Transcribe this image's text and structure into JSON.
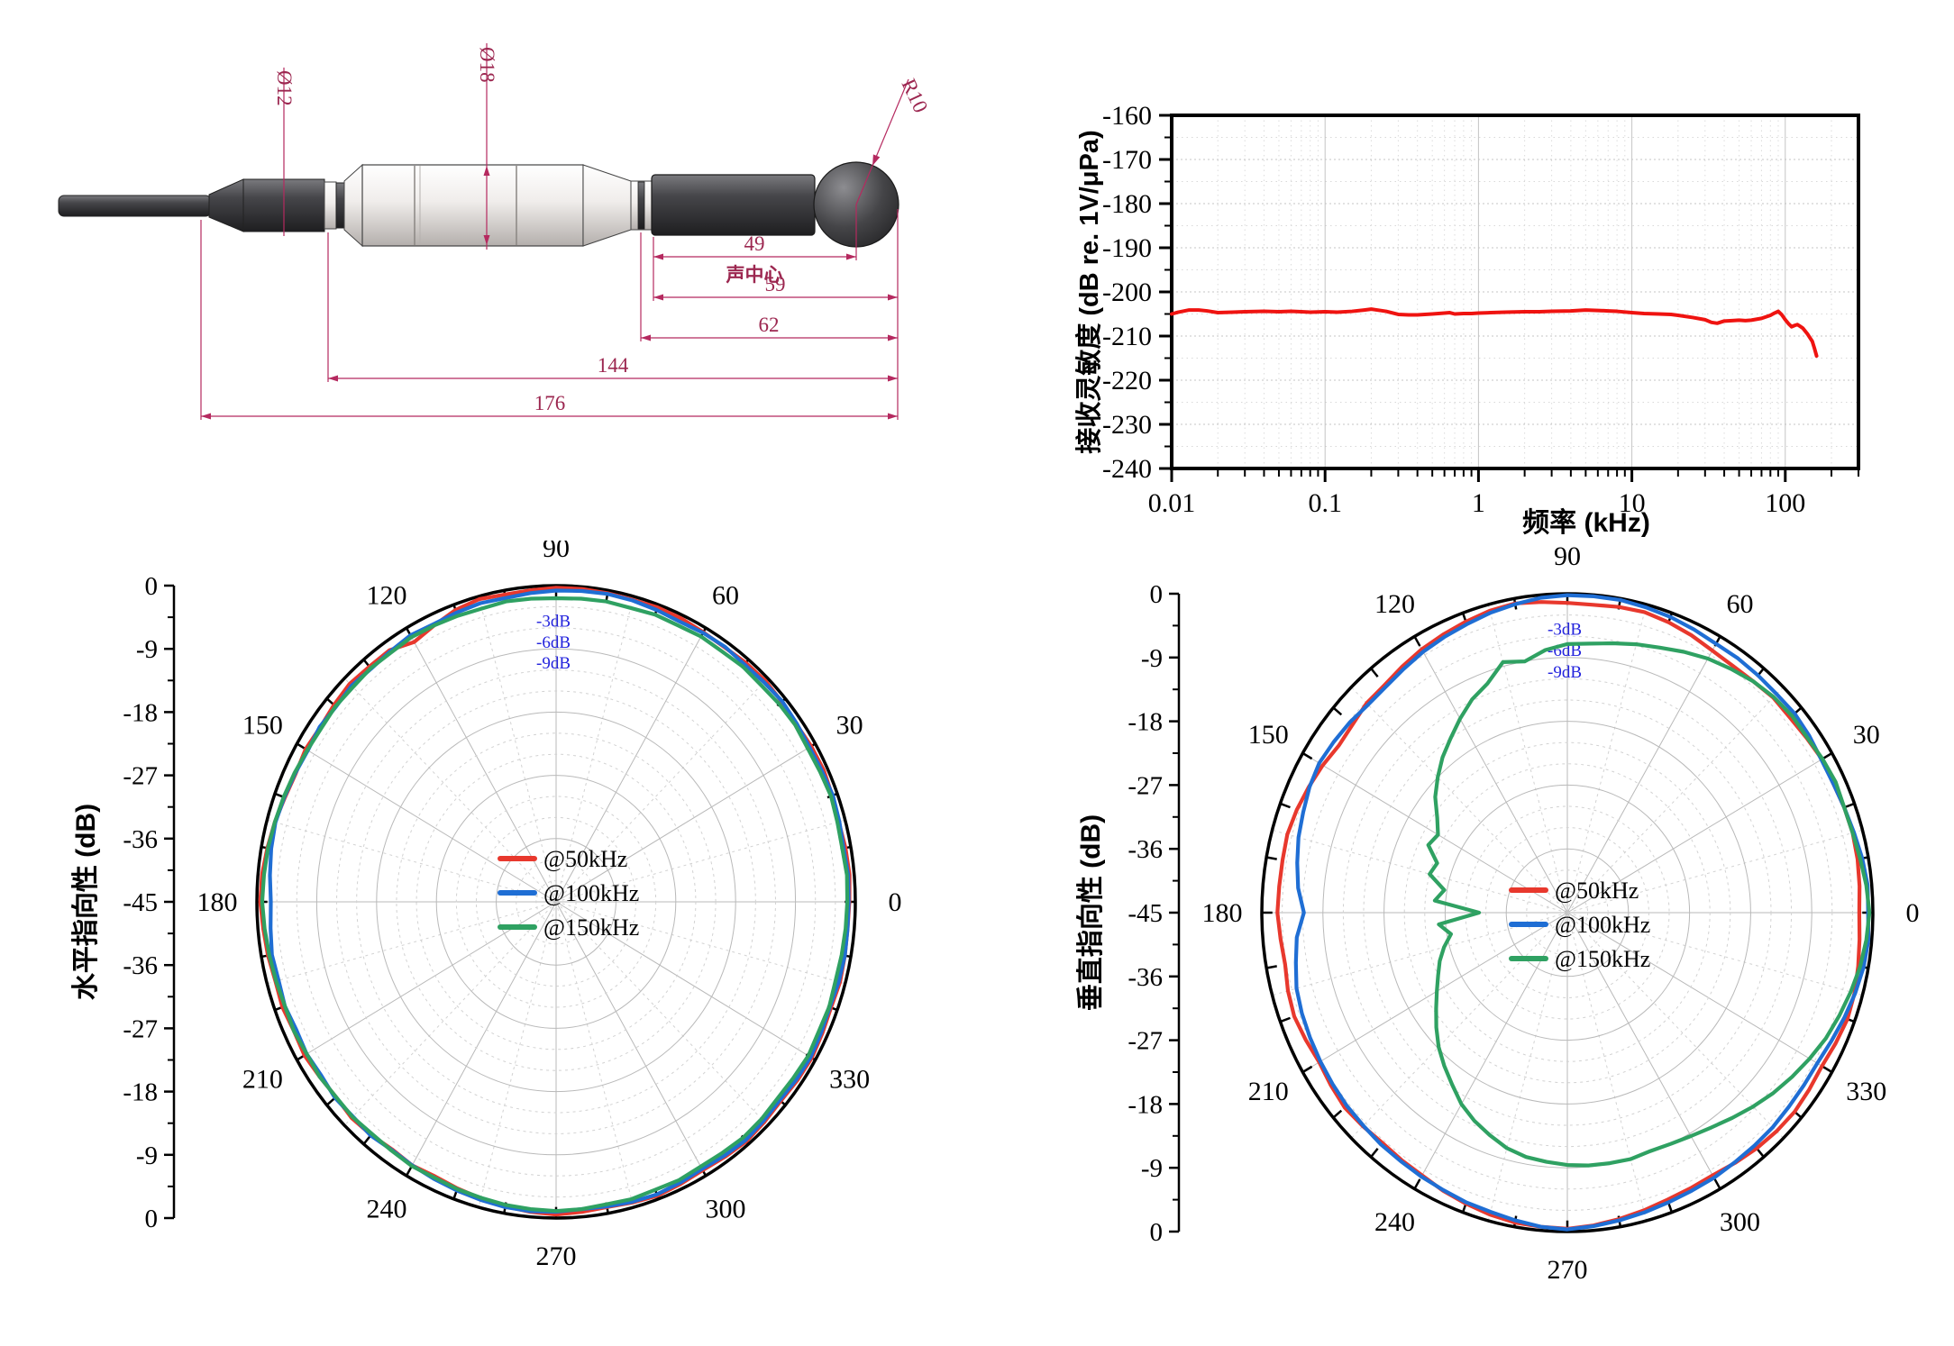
{
  "drawing": {
    "dim_color": "#b5295f",
    "labels": {
      "dia_connector": "Ø12",
      "dia_body": "Ø18",
      "radius_sphere": "R10",
      "dim_49": "49",
      "acoustic_center": "声中心",
      "dim_59": "59",
      "dim_62": "62",
      "dim_144": "144",
      "dim_176": "176"
    }
  },
  "chart_data": [
    {
      "type": "line",
      "name": "receive-sensitivity-frequency-response",
      "xlabel": "频率 (kHz)",
      "ylabel": "接收灵敏度 (dB re. 1V/μPa)",
      "xscale": "log",
      "xlim": [
        0.01,
        300
      ],
      "ylim": [
        -240,
        -160
      ],
      "x_tick_labels": [
        "0.01",
        "0.1",
        "1",
        "10",
        "100"
      ],
      "x_ticks": [
        0.01,
        0.1,
        1,
        10,
        100
      ],
      "y_ticks": [
        -160,
        -170,
        -180,
        -190,
        -200,
        -210,
        -220,
        -230,
        -240
      ],
      "y_tick_labels": [
        "-160",
        "-170",
        "-180",
        "-190",
        "-200",
        "-210",
        "-220",
        "-230",
        "-240"
      ],
      "grid": true,
      "line_color": "#ef1310",
      "points": [
        [
          0.01,
          -205.0
        ],
        [
          0.011,
          -204.6
        ],
        [
          0.013,
          -204.1
        ],
        [
          0.015,
          -204.1
        ],
        [
          0.017,
          -204.3
        ],
        [
          0.02,
          -204.7
        ],
        [
          0.025,
          -204.6
        ],
        [
          0.03,
          -204.5
        ],
        [
          0.04,
          -204.4
        ],
        [
          0.05,
          -204.5
        ],
        [
          0.06,
          -204.4
        ],
        [
          0.07,
          -204.5
        ],
        [
          0.08,
          -204.6
        ],
        [
          0.1,
          -204.5
        ],
        [
          0.12,
          -204.6
        ],
        [
          0.15,
          -204.4
        ],
        [
          0.18,
          -204.1
        ],
        [
          0.2,
          -203.9
        ],
        [
          0.25,
          -204.4
        ],
        [
          0.3,
          -205.1
        ],
        [
          0.35,
          -205.2
        ],
        [
          0.4,
          -205.2
        ],
        [
          0.5,
          -205.0
        ],
        [
          0.6,
          -204.8
        ],
        [
          0.65,
          -204.7
        ],
        [
          0.7,
          -205.0
        ],
        [
          0.8,
          -204.9
        ],
        [
          0.9,
          -204.9
        ],
        [
          1,
          -204.8
        ],
        [
          1.2,
          -204.7
        ],
        [
          1.5,
          -204.6
        ],
        [
          2,
          -204.5
        ],
        [
          2.5,
          -204.5
        ],
        [
          3,
          -204.4
        ],
        [
          4,
          -204.3
        ],
        [
          5,
          -204.1
        ],
        [
          6,
          -204.2
        ],
        [
          7,
          -204.3
        ],
        [
          8,
          -204.4
        ],
        [
          10,
          -204.7
        ],
        [
          12,
          -204.9
        ],
        [
          15,
          -205.0
        ],
        [
          18,
          -205.1
        ],
        [
          20,
          -205.3
        ],
        [
          25,
          -205.8
        ],
        [
          30,
          -206.3
        ],
        [
          33,
          -206.9
        ],
        [
          36,
          -207.1
        ],
        [
          40,
          -206.6
        ],
        [
          45,
          -206.5
        ],
        [
          50,
          -206.4
        ],
        [
          55,
          -206.5
        ],
        [
          60,
          -206.4
        ],
        [
          70,
          -206.0
        ],
        [
          80,
          -205.3
        ],
        [
          85,
          -204.8
        ],
        [
          90,
          -204.4
        ],
        [
          95,
          -205.2
        ],
        [
          100,
          -206.3
        ],
        [
          105,
          -207.2
        ],
        [
          110,
          -207.9
        ],
        [
          115,
          -207.6
        ],
        [
          120,
          -207.4
        ],
        [
          125,
          -207.8
        ],
        [
          130,
          -208.2
        ],
        [
          140,
          -209.6
        ],
        [
          150,
          -211.2
        ],
        [
          155,
          -212.8
        ],
        [
          160,
          -214.5
        ]
      ]
    },
    {
      "type": "polar-line",
      "name": "horizontal-directivity",
      "axis_title": "水平指向性 (dB)",
      "r_range": [
        0,
        -45
      ],
      "r_axis_labels": [
        "0",
        "-9",
        "-18",
        "-27",
        "-36",
        "-45",
        "-36",
        "-27",
        "-18",
        "-9",
        "0"
      ],
      "angle_labels": [
        "0",
        "30",
        "60",
        "90",
        "120",
        "150",
        "180",
        "210",
        "240",
        "270",
        "300",
        "330"
      ],
      "annotations": [
        "-3dB",
        "-6dB",
        "-9dB"
      ],
      "annotation_dbs": [
        -3,
        -6,
        -9
      ],
      "annotation_color": "#2323dd",
      "angle_step_deg": 5,
      "series": [
        {
          "name": "@50kHz",
          "color": "#e8382d",
          "values": [
            -0.9,
            -0.7,
            -0.8,
            -1.0,
            -0.8,
            -0.6,
            -0.7,
            -0.9,
            -0.7,
            -0.5,
            -0.6,
            -0.8,
            -0.7,
            -0.5,
            -0.4,
            -0.5,
            -0.4,
            -0.3,
            -0.3,
            -0.5,
            -0.6,
            -0.4,
            -0.8,
            -1.6,
            -2.3,
            -1.3,
            -1.3,
            -1.1,
            -1.4,
            -1.7,
            -1.5,
            -1.8,
            -1.6,
            -1.2,
            -0.9,
            -0.6,
            -0.5,
            -0.8,
            -1.0,
            -1.3,
            -1.2,
            -1.5,
            -1.3,
            -1.6,
            -1.8,
            -1.5,
            -1.7,
            -2.0,
            -1.7,
            -1.9,
            -1.6,
            -1.3,
            -1.0,
            -0.7,
            -0.5,
            -0.7,
            -0.9,
            -0.7,
            -0.5,
            -0.7,
            -0.9,
            -0.7,
            -0.5,
            -0.7,
            -0.9,
            -0.7,
            -0.6,
            -0.8,
            -1.0,
            -0.8,
            -0.9,
            -1.0
          ]
        },
        {
          "name": "@100kHz",
          "color": "#1f6ed4",
          "values": [
            -1.0,
            -0.9,
            -1.1,
            -0.9,
            -0.7,
            -0.9,
            -1.0,
            -0.8,
            -0.6,
            -0.8,
            -0.9,
            -0.7,
            -0.8,
            -1.0,
            -0.8,
            -0.6,
            -0.5,
            -0.6,
            -0.7,
            -0.9,
            -1.1,
            -1.0,
            -1.2,
            -1.4,
            -1.2,
            -1.5,
            -1.7,
            -1.5,
            -1.8,
            -1.6,
            -1.9,
            -1.7,
            -1.5,
            -1.3,
            -1.5,
            -1.8,
            -2.1,
            -1.9,
            -1.6,
            -1.8,
            -1.6,
            -1.9,
            -1.7,
            -1.9,
            -1.6,
            -1.8,
            -1.6,
            -1.9,
            -1.7,
            -1.5,
            -1.3,
            -1.1,
            -0.9,
            -0.8,
            -0.9,
            -1.1,
            -1.0,
            -0.8,
            -0.7,
            -0.9,
            -1.1,
            -0.9,
            -0.7,
            -0.9,
            -1.1,
            -0.9,
            -0.8,
            -1.0,
            -1.2,
            -1.0,
            -0.9,
            -1.0
          ]
        },
        {
          "name": "@150kHz",
          "color": "#2fa162",
          "values": [
            -1.2,
            -1.1,
            -1.3,
            -1.2,
            -1.0,
            -1.2,
            -1.3,
            -1.1,
            -1.2,
            -1.4,
            -1.3,
            -1.5,
            -1.4,
            -1.6,
            -1.5,
            -1.7,
            -1.6,
            -1.7,
            -1.8,
            -1.7,
            -1.6,
            -1.8,
            -1.7,
            -1.6,
            -1.5,
            -1.7,
            -1.6,
            -1.8,
            -1.7,
            -1.9,
            -1.8,
            -1.6,
            -1.4,
            -1.2,
            -1.0,
            -0.9,
            -0.8,
            -1.0,
            -1.2,
            -1.4,
            -1.6,
            -1.5,
            -1.7,
            -1.6,
            -1.8,
            -1.7,
            -1.9,
            -1.8,
            -1.6,
            -1.7,
            -1.5,
            -1.4,
            -1.2,
            -1.1,
            -1.0,
            -1.1,
            -1.3,
            -1.2,
            -1.4,
            -1.3,
            -1.5,
            -1.4,
            -1.2,
            -1.3,
            -1.5,
            -1.4,
            -1.2,
            -1.4,
            -1.3,
            -1.5,
            -1.4,
            -1.3
          ]
        }
      ]
    },
    {
      "type": "polar-line",
      "name": "vertical-directivity",
      "axis_title": "垂直指向性 (dB)",
      "r_range": [
        0,
        -45
      ],
      "r_axis_labels": [
        "0",
        "-9",
        "-18",
        "-27",
        "-36",
        "-45",
        "-36",
        "-27",
        "-18",
        "-9",
        "0"
      ],
      "angle_labels": [
        "0",
        "30",
        "60",
        "90",
        "120",
        "150",
        "180",
        "210",
        "240",
        "270",
        "300",
        "330"
      ],
      "annotations": [
        "-3dB",
        "-6dB",
        "-9dB"
      ],
      "annotation_dbs": [
        -3,
        -6,
        -9
      ],
      "annotation_color": "#2323dd",
      "angle_step_deg": 5,
      "series": [
        {
          "name": "@50kHz",
          "color": "#e8382d",
          "values": [
            -2.0,
            -1.8,
            -1.6,
            -1.5,
            -1.6,
            -1.8,
            -1.7,
            -2.0,
            -2.2,
            -2.1,
            -2.4,
            -2.5,
            -2.3,
            -1.8,
            -1.4,
            -1.1,
            -1.2,
            -1.4,
            -1.3,
            -1.0,
            -0.7,
            -0.9,
            -1.3,
            -1.7,
            -2.1,
            -2.6,
            -3.1,
            -3.2,
            -3.7,
            -3.9,
            -3.4,
            -3.0,
            -2.6,
            -2.3,
            -2.4,
            -2.4,
            -2.3,
            -2.6,
            -2.8,
            -2.4,
            -2.2,
            -2.5,
            -2.8,
            -2.5,
            -2.2,
            -2.4,
            -2.6,
            -2.4,
            -2.2,
            -1.7,
            -1.3,
            -0.9,
            -0.6,
            -0.5,
            -0.4,
            -0.7,
            -1.1,
            -1.5,
            -1.9,
            -2.1,
            -2.2,
            -1.9,
            -1.6,
            -1.4,
            -1.3,
            -1.5,
            -1.7,
            -1.4,
            -1.1,
            -1.2,
            -1.5,
            -1.8
          ]
        },
        {
          "name": "@100kHz",
          "color": "#1f6ed4",
          "values": [
            -0.7,
            -0.6,
            -0.9,
            -1.3,
            -1.6,
            -1.8,
            -1.8,
            -1.5,
            -1.3,
            -1.4,
            -1.3,
            -1.2,
            -1.2,
            -0.9,
            -0.6,
            -0.4,
            -0.2,
            -0.2,
            -0.2,
            -0.4,
            -0.8,
            -1.2,
            -1.7,
            -2.1,
            -2.5,
            -3.0,
            -3.4,
            -3.5,
            -3.2,
            -3.0,
            -2.8,
            -3.1,
            -3.6,
            -4.0,
            -4.6,
            -5.2,
            -6.2,
            -5.0,
            -4.4,
            -3.7,
            -3.4,
            -3.2,
            -3.0,
            -2.8,
            -2.6,
            -2.5,
            -2.3,
            -2.2,
            -2.0,
            -1.8,
            -1.5,
            -1.3,
            -0.9,
            -0.5,
            -0.3,
            -0.6,
            -0.9,
            -1.2,
            -1.5,
            -1.7,
            -1.8,
            -2.0,
            -2.1,
            -2.2,
            -2.4,
            -2.5,
            -2.5,
            -2.1,
            -1.6,
            -1.1,
            -0.7,
            -0.5
          ]
        },
        {
          "name": "@150kHz",
          "color": "#2fa162",
          "values": [
            -0.5,
            -0.8,
            -1.2,
            -1.5,
            -1.6,
            -1.4,
            -1.6,
            -1.9,
            -1.8,
            -2.0,
            -2.4,
            -3.0,
            -3.6,
            -4.4,
            -5.2,
            -5.8,
            -6.4,
            -6.9,
            -7.1,
            -7.8,
            -9.0,
            -8.4,
            -10.6,
            -11.8,
            -13.4,
            -15.0,
            -16.4,
            -18.0,
            -19.6,
            -21.6,
            -23.0,
            -22.4,
            -24.6,
            -24.0,
            -26.6,
            -25.4,
            -32.0,
            -26.0,
            -27.6,
            -26.2,
            -25.0,
            -24.0,
            -22.8,
            -21.4,
            -19.8,
            -18.2,
            -16.8,
            -15.4,
            -13.8,
            -12.6,
            -11.6,
            -10.6,
            -10.0,
            -9.7,
            -9.4,
            -9.2,
            -9.1,
            -9.0,
            -9.2,
            -9.0,
            -8.6,
            -8.0,
            -7.2,
            -6.3,
            -5.4,
            -4.6,
            -3.8,
            -3.0,
            -2.4,
            -1.8,
            -1.2,
            -0.8
          ]
        }
      ]
    }
  ]
}
